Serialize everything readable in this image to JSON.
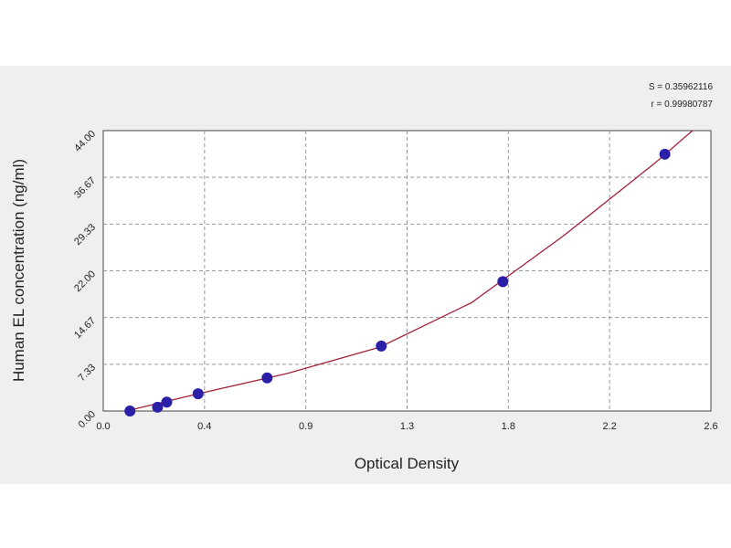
{
  "chart_data": {
    "type": "scatter",
    "annotations": [
      "S = 0.35962116",
      "r = 0.99980787"
    ],
    "xlabel": "Optical Density",
    "ylabel": "Human EL concentration (ng/ml)",
    "xlim": [
      0,
      2.64
    ],
    "ylim": [
      0,
      44
    ],
    "xticks": [
      {
        "value": 0,
        "label": "0.0"
      },
      {
        "value": 0.44,
        "label": "0.4"
      },
      {
        "value": 0.88,
        "label": "0.9"
      },
      {
        "value": 1.32,
        "label": "1.3"
      },
      {
        "value": 1.76,
        "label": "1.8"
      },
      {
        "value": 2.2,
        "label": "2.2"
      },
      {
        "value": 2.64,
        "label": "2.6"
      }
    ],
    "yticks": [
      {
        "value": 0,
        "label": "0.00"
      },
      7.33,
      14.67,
      {
        "value": 22,
        "label": "22.00"
      },
      29.33,
      36.67,
      {
        "value": 44,
        "label": "44.00"
      }
    ],
    "grid": true,
    "series": [
      {
        "color": "#2a1fa6",
        "x": [
          0.116,
          0.236,
          0.276,
          0.412,
          0.712,
          1.208,
          1.736,
          2.44
        ],
        "values": [
          0,
          0.6,
          1.4,
          2.7,
          5.2,
          10.2,
          20.3,
          40.3
        ]
      },
      {
        "color": "#a3243a",
        "x": [
          0.1,
          0.4,
          0.8,
          1.2,
          1.6,
          2.0,
          2.4,
          2.56
        ],
        "values": [
          0,
          2.6,
          5.9,
          10.0,
          17.0,
          27.5,
          39.0,
          44.0
        ]
      }
    ]
  }
}
